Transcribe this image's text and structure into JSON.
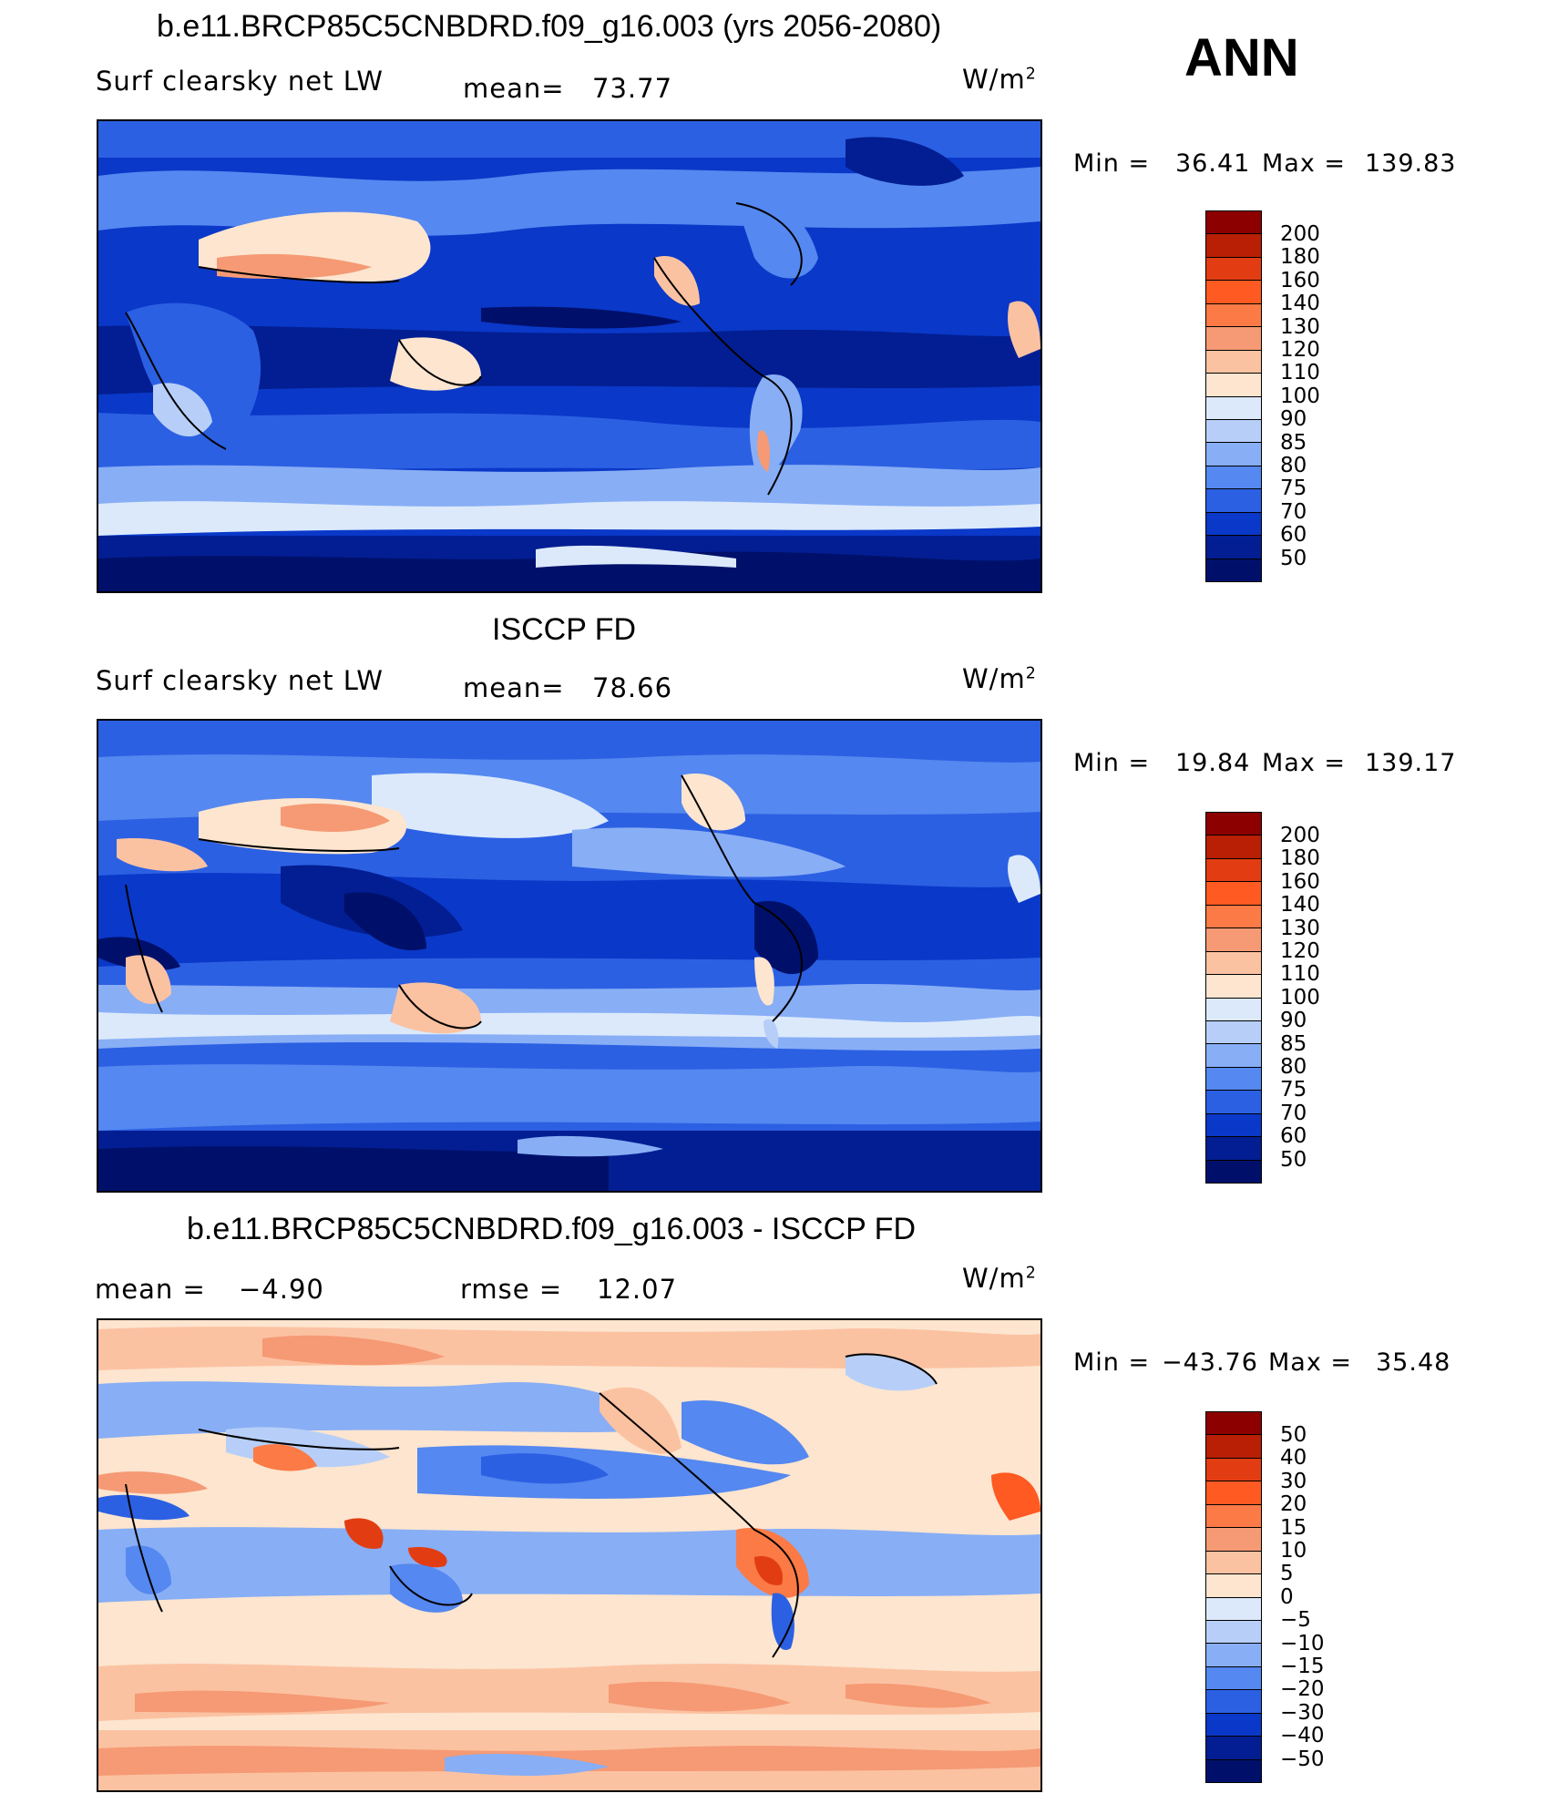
{
  "header": {
    "ann_label": "ANN"
  },
  "units_base": "W/m",
  "units_exp": "2",
  "chart_data": [
    {
      "type": "heatmap",
      "title": "b.e11.BRCP85C5CNBDRD.f09_g16.003 (yrs 2056-2080)",
      "variable": "Surf clearsky net LW",
      "mean_label": "mean=",
      "mean_value": "73.77",
      "units": "W/m2",
      "min_label": "Min =",
      "min_value": "36.41",
      "max_label": "Max =",
      "max_value": "139.83",
      "levels": [
        "200",
        "180",
        "160",
        "140",
        "130",
        "120",
        "110",
        "100",
        "90",
        "85",
        "80",
        "75",
        "70",
        "60",
        "50"
      ],
      "colors": [
        "#8c0000",
        "#b81f05",
        "#e23d12",
        "#ff5a22",
        "#fb7a45",
        "#f59a74",
        "#fbc2a2",
        "#fde5cf",
        "#dbe9fb",
        "#b7cff8",
        "#88aef5",
        "#5588f0",
        "#2c60e3",
        "#0a38c8",
        "#021e92",
        "#00106a"
      ]
    },
    {
      "type": "heatmap",
      "title": "ISCCP FD",
      "variable": "Surf clearsky net LW",
      "mean_label": "mean=",
      "mean_value": "78.66",
      "units": "W/m2",
      "min_label": "Min =",
      "min_value": "19.84",
      "max_label": "Max =",
      "max_value": "139.17",
      "levels": [
        "200",
        "180",
        "160",
        "140",
        "130",
        "120",
        "110",
        "100",
        "90",
        "85",
        "80",
        "75",
        "70",
        "60",
        "50"
      ],
      "colors": [
        "#8c0000",
        "#b81f05",
        "#e23d12",
        "#ff5a22",
        "#fb7a45",
        "#f59a74",
        "#fbc2a2",
        "#fde5cf",
        "#dbe9fb",
        "#b7cff8",
        "#88aef5",
        "#5588f0",
        "#2c60e3",
        "#0a38c8",
        "#021e92",
        "#00106a"
      ]
    },
    {
      "type": "heatmap",
      "title": "b.e11.BRCP85C5CNBDRD.f09_g16.003 - ISCCP FD",
      "mean_label": "mean =",
      "mean_value": "−4.90",
      "rmse_label": "rmse =",
      "rmse_value": "12.07",
      "units": "W/m2",
      "min_label": "Min =",
      "min_value": "−43.76",
      "max_label": "Max =",
      "max_value": "35.48",
      "levels": [
        "50",
        "40",
        "30",
        "20",
        "15",
        "10",
        "5",
        "0",
        "−5",
        "−10",
        "−15",
        "−20",
        "−30",
        "−40",
        "−50"
      ],
      "colors": [
        "#8c0000",
        "#b81f05",
        "#e23d12",
        "#ff5a22",
        "#fb7a45",
        "#f59a74",
        "#fbc2a2",
        "#fde5cf",
        "#dbe9fb",
        "#b7cff8",
        "#88aef5",
        "#5588f0",
        "#2c60e3",
        "#0a38c8",
        "#021e92",
        "#00106a"
      ]
    }
  ]
}
